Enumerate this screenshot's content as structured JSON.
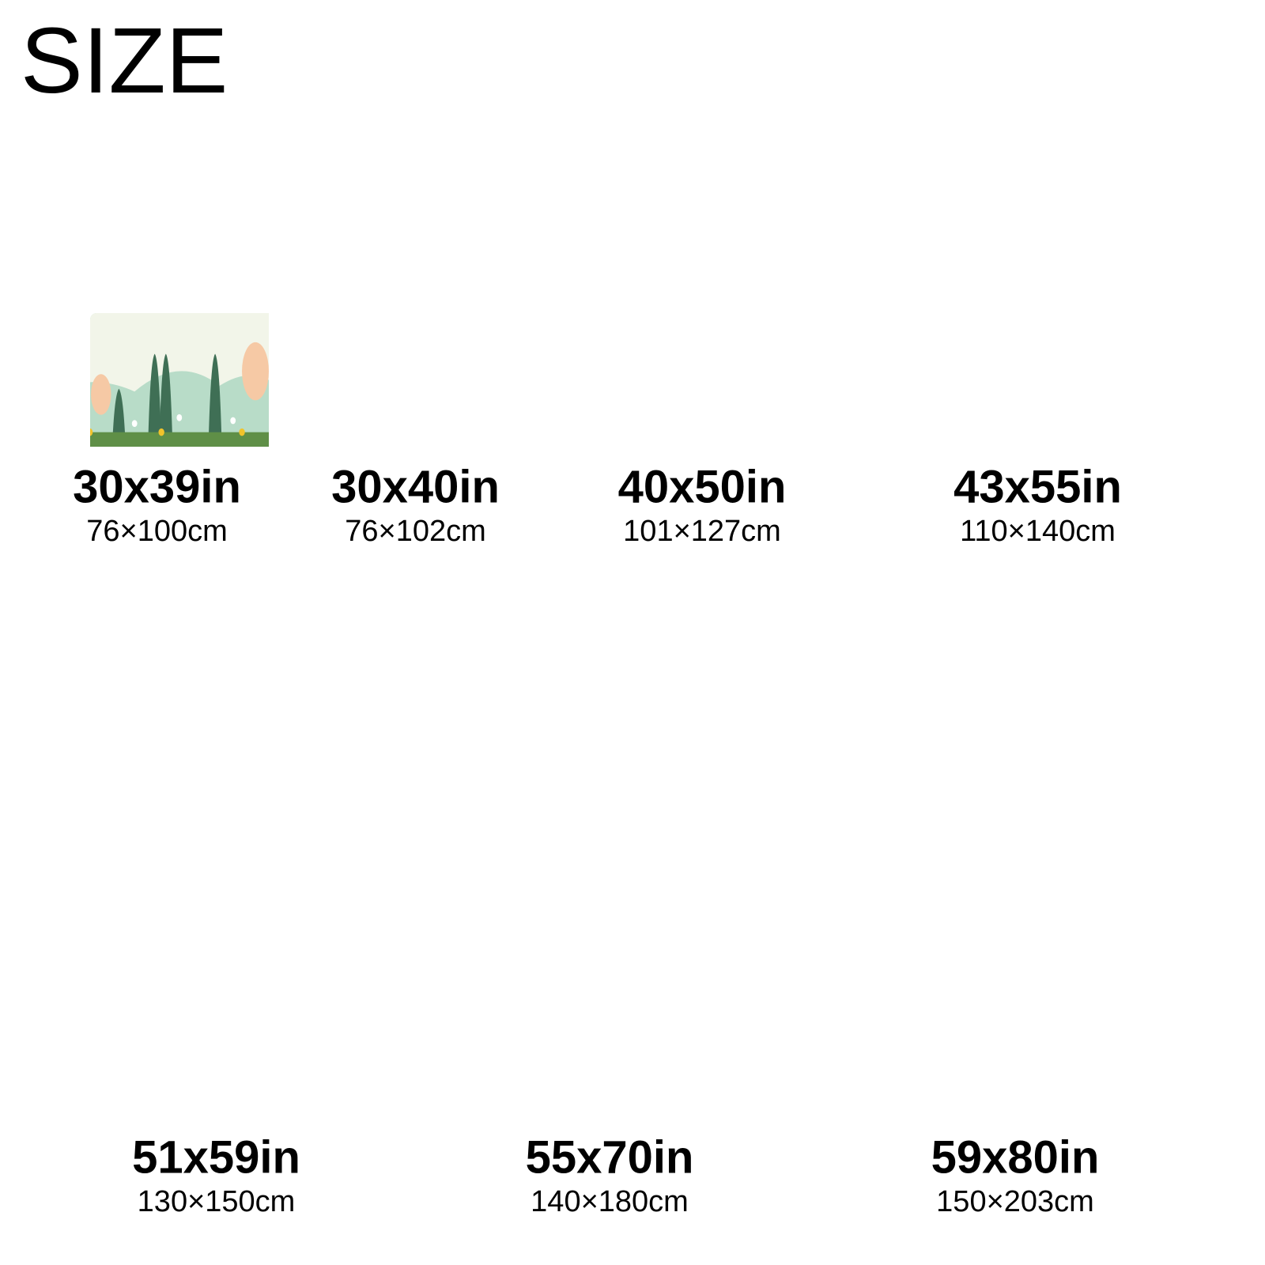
{
  "title": "SIZE",
  "sizes": [
    {
      "inches": "30x39in",
      "cm": "76×100cm"
    },
    {
      "inches": "30x40in",
      "cm": "76×102cm"
    },
    {
      "inches": "40x50in",
      "cm": "101×127cm"
    },
    {
      "inches": "43x55in",
      "cm": "110×140cm"
    },
    {
      "inches": "51x59in",
      "cm": "130×150cm"
    },
    {
      "inches": "55x70in",
      "cm": "140×180cm"
    },
    {
      "inches": "59x80in",
      "cm": "150×203cm"
    }
  ]
}
